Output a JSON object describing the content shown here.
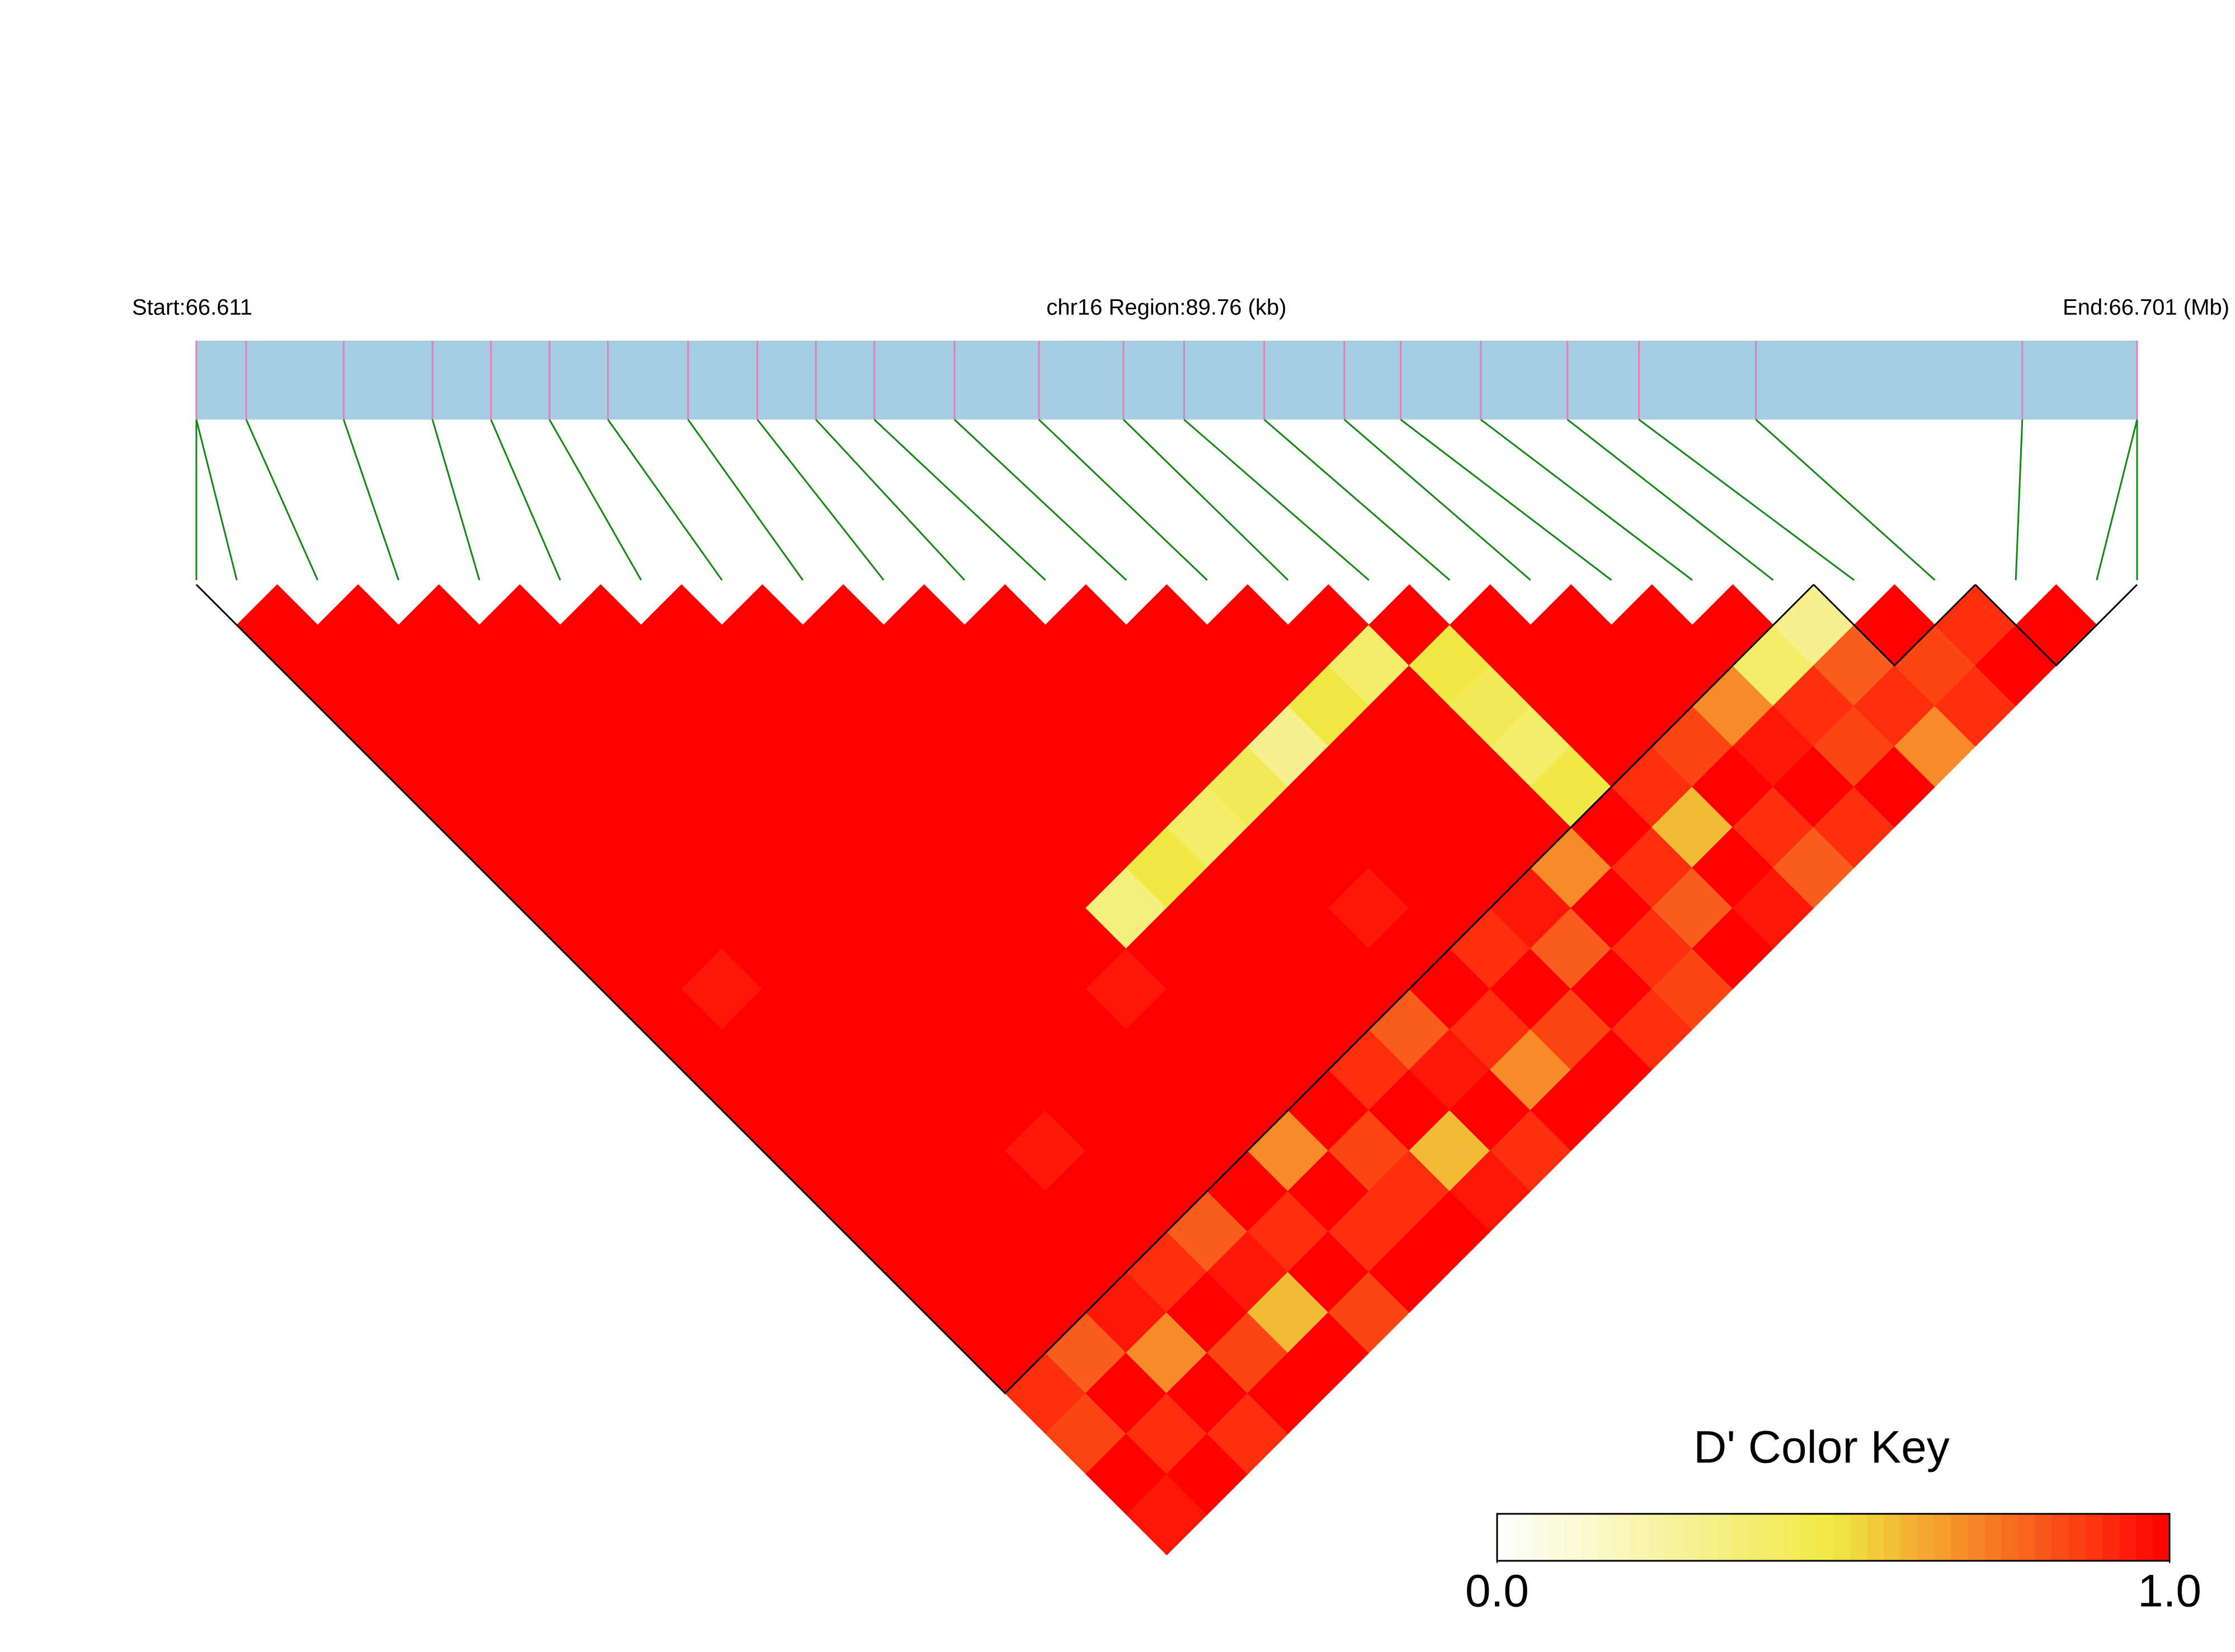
{
  "chart_data": {
    "type": "ld_heatmap",
    "start_label": "Start:66.611",
    "region_label": "chr16 Region:89.76 (kb)",
    "end_label": "End:66.701 (Mb)",
    "snps": [
      66.6112,
      66.6135,
      66.618,
      66.6221,
      66.6248,
      66.6275,
      66.6302,
      66.6339,
      66.6371,
      66.6398,
      66.6425,
      66.6462,
      66.6501,
      66.654,
      66.6568,
      66.6605,
      66.6642,
      66.6668,
      66.6705,
      66.6745,
      66.6778,
      66.6832,
      66.6955,
      66.7008
    ],
    "dprime": [
      [
        1,
        1,
        1,
        1,
        1,
        1,
        1,
        1,
        1,
        1,
        1,
        1,
        1,
        1,
        1,
        1,
        1,
        1,
        1,
        0.9,
        0.85,
        1,
        0.95
      ],
      [
        1,
        1,
        1,
        1,
        1,
        1,
        1,
        1,
        1,
        0.95,
        1,
        1,
        1,
        1,
        1,
        1,
        1,
        1,
        0.8,
        1,
        0.9,
        1
      ],
      [
        1,
        1,
        1,
        1,
        1,
        1,
        1,
        1,
        1,
        1,
        1,
        1,
        1,
        1,
        1,
        1,
        1,
        0.95,
        0.7,
        1,
        0.9
      ],
      [
        1,
        1,
        1,
        1,
        1,
        1,
        1,
        1,
        1,
        1,
        1,
        1,
        1,
        0.95,
        1,
        1,
        0.9,
        1,
        0.85,
        1
      ],
      [
        1,
        1,
        1,
        1,
        1,
        1,
        1,
        1,
        1,
        1,
        1,
        1,
        1,
        1,
        1,
        0.8,
        0.95,
        0.6,
        1
      ],
      [
        1,
        1,
        1,
        1,
        1,
        1,
        1,
        1,
        1,
        1,
        1,
        1,
        1,
        1,
        1,
        0.9,
        1,
        0.85
      ],
      [
        1,
        1,
        1,
        1,
        1,
        1,
        1,
        1,
        1,
        0.95,
        1,
        1,
        1,
        0.7,
        1,
        0.9,
        1
      ],
      [
        1,
        1,
        1,
        1,
        1,
        1,
        1,
        0.35,
        1,
        1,
        1,
        1,
        1,
        0.85,
        0.9,
        1
      ],
      [
        1,
        1,
        1,
        1,
        1,
        1,
        0.5,
        1,
        1,
        1,
        1,
        0.9,
        1,
        0.6,
        0.95
      ],
      [
        1,
        1,
        1,
        1,
        1,
        0.4,
        1,
        1,
        1,
        1,
        0.8,
        0.95,
        1,
        0.9
      ],
      [
        1,
        1,
        1,
        1,
        0.45,
        1,
        1,
        0.95,
        1,
        1,
        0.9,
        0.7,
        1
      ],
      [
        1,
        1,
        1,
        0.3,
        1,
        1,
        1,
        1,
        0.9,
        1,
        0.85,
        1
      ],
      [
        1,
        1,
        0.5,
        1,
        1,
        1,
        1,
        0.95,
        0.8,
        1,
        0.9
      ],
      [
        1,
        0.4,
        1,
        1,
        1,
        1,
        0.7,
        1,
        0.9,
        0.85
      ],
      [
        1,
        0.5,
        0.45,
        0.4,
        0.5,
        1,
        0.9,
        0.8,
        1
      ],
      [
        1,
        1,
        1,
        1,
        0.9,
        0.6,
        1,
        0.95
      ],
      [
        1,
        1,
        1,
        0.85,
        1,
        0.9,
        0.8
      ],
      [
        1,
        1,
        0.7,
        0.95,
        1,
        0.9
      ],
      [
        1,
        0.4,
        0.9,
        0.85,
        1
      ],
      [
        0.3,
        0.8,
        0.9,
        0.7
      ],
      [
        1,
        0.85,
        0.9
      ],
      [
        0.9,
        1
      ],
      [
        1
      ]
    ],
    "blocks": [
      [
        0,
        19
      ],
      [
        20,
        21
      ],
      [
        22,
        23
      ]
    ],
    "bar_color": "#a6cee3",
    "snp_color": "#e47fb8",
    "link_color": "#118811",
    "colorkey": {
      "title": "D' Color Key",
      "lim": [
        0,
        1
      ],
      "ticks": [
        {
          "value": 0,
          "label": "0.0"
        },
        {
          "value": 1,
          "label": "1.0"
        }
      ],
      "colors": [
        "#ffffff",
        "#f0e843",
        "#ff0000"
      ]
    }
  }
}
